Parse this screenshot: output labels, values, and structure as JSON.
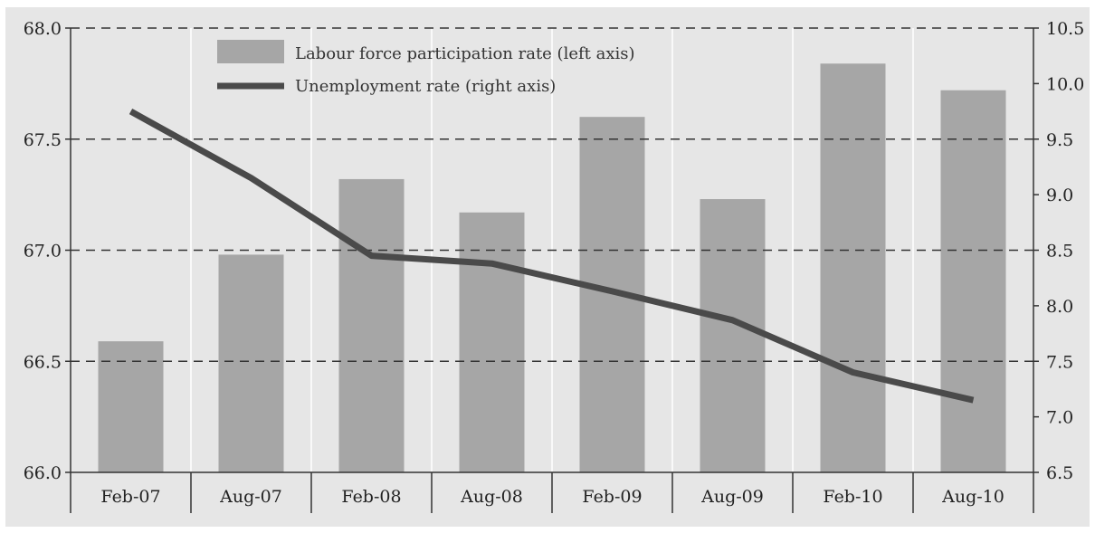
{
  "chart_data": {
    "type": "bar",
    "categories": [
      "Feb-07",
      "Aug-07",
      "Feb-08",
      "Aug-08",
      "Feb-09",
      "Aug-09",
      "Feb-10",
      "Aug-10"
    ],
    "series": [
      {
        "name": "Labour force participation rate (left axis)",
        "type": "bar",
        "axis": "left",
        "values": [
          66.59,
          66.98,
          67.32,
          67.17,
          67.6,
          67.23,
          67.84,
          67.72
        ]
      },
      {
        "name": "Unemployment rate (right axis)",
        "type": "line",
        "axis": "right",
        "values": [
          9.75,
          9.15,
          8.45,
          8.38,
          8.13,
          7.87,
          7.4,
          7.15
        ]
      }
    ],
    "ylim_left": [
      66.0,
      68.0
    ],
    "ylim_right": [
      6.5,
      10.5
    ],
    "yticks_left": [
      "66.0",
      "66.5",
      "67.0",
      "67.5",
      "68.0"
    ],
    "yticks_right": [
      "6.5",
      "7.0",
      "7.5",
      "8.0",
      "8.5",
      "9.0",
      "9.5",
      "10.0",
      "10.5"
    ],
    "grid": "horizontal dashed",
    "legend_position": "top-left",
    "colors": {
      "plot_background": "#e6e6e6",
      "bar": "#a6a6a6",
      "line": "#4a4a4a",
      "grid": "#333333"
    }
  }
}
